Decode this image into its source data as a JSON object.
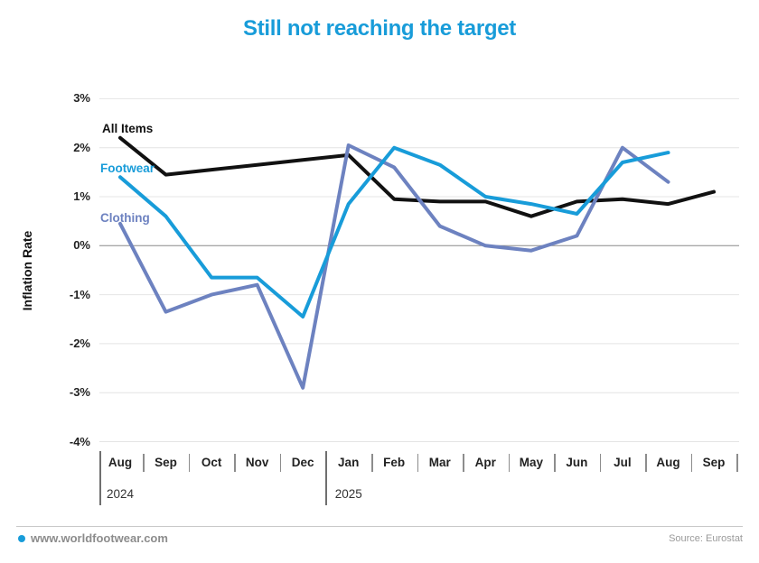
{
  "title": "Still not reaching the target",
  "ylabel": "Inflation Rate",
  "footer": {
    "site": "www.worldfootwear.com",
    "source": "Source: Eurostat"
  },
  "colors": {
    "title": "#189cd9",
    "all_items": "#111111",
    "footwear": "#189cd9",
    "clothing": "#6d82c0",
    "grid": "#e4e4e4",
    "zero_line": "#8a8a8a"
  },
  "chart_data": {
    "type": "line",
    "title": "Still not reaching the target",
    "xlabel": "",
    "ylabel": "Inflation Rate",
    "ylim": [
      -4,
      3
    ],
    "grid": "horizontal",
    "unit": "percent",
    "y_ticks": [
      "3%",
      "2%",
      "1%",
      "0%",
      "-1%",
      "-2%",
      "-3%",
      "-4%"
    ],
    "x_categories": [
      "Aug",
      "Sep",
      "Oct",
      "Nov",
      "Dec",
      "Jan",
      "Feb",
      "Mar",
      "Apr",
      "May",
      "Jun",
      "Jul",
      "Aug",
      "Sep"
    ],
    "year_groups": [
      {
        "label": "2024",
        "start_index": 0
      },
      {
        "label": "2025",
        "start_index": 5
      }
    ],
    "legend_position": "inline-labels-left",
    "series": [
      {
        "name": "All Items",
        "color": "#111111",
        "values": [
          2.2,
          1.45,
          1.55,
          1.65,
          1.75,
          1.85,
          0.95,
          0.9,
          0.9,
          0.6,
          0.9,
          0.95,
          0.85,
          1.1
        ]
      },
      {
        "name": "Footwear",
        "color": "#189cd9",
        "values": [
          1.4,
          0.6,
          -0.65,
          -0.65,
          -1.45,
          0.85,
          2.0,
          1.65,
          1.0,
          0.85,
          0.65,
          1.7,
          1.9,
          null
        ]
      },
      {
        "name": "Clothing",
        "color": "#6d82c0",
        "values": [
          0.45,
          -1.35,
          -1.0,
          -0.8,
          -2.9,
          2.05,
          1.6,
          0.4,
          0.0,
          -0.1,
          0.2,
          2.0,
          1.3,
          null
        ]
      }
    ]
  }
}
